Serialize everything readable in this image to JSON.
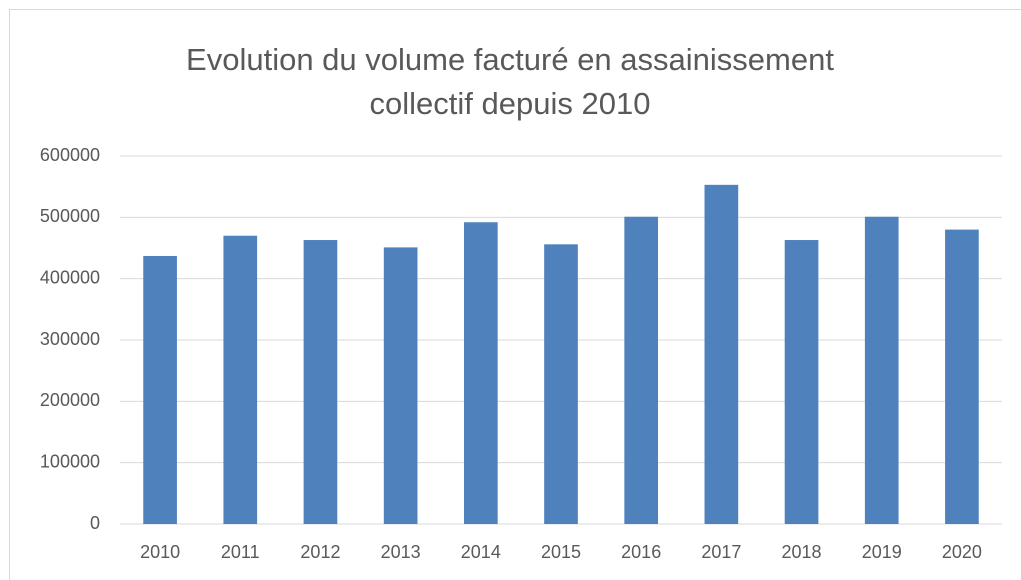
{
  "chart_data": {
    "type": "bar",
    "title": "Evolution du volume facturé en assainissement collectif depuis 2010",
    "categories": [
      "2010",
      "2011",
      "2012",
      "2013",
      "2014",
      "2015",
      "2016",
      "2017",
      "2018",
      "2019",
      "2020"
    ],
    "values": [
      437000,
      470000,
      463000,
      451000,
      492000,
      456000,
      501000,
      553000,
      463000,
      501000,
      480000
    ],
    "color": "#4f81bd",
    "ylim": [
      0,
      600000
    ],
    "yticks": [
      0,
      100000,
      200000,
      300000,
      400000,
      500000,
      600000
    ],
    "grid": true
  }
}
